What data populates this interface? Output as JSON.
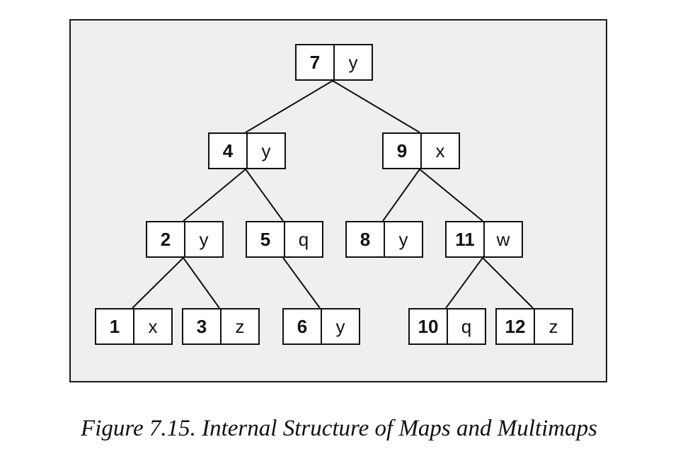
{
  "figure": {
    "caption": "Figure 7.15. Internal Structure of Maps and Multimaps"
  },
  "tree": {
    "nodes": [
      {
        "id": "n7",
        "key": "7",
        "value": "y"
      },
      {
        "id": "n4",
        "key": "4",
        "value": "y"
      },
      {
        "id": "n9",
        "key": "9",
        "value": "x"
      },
      {
        "id": "n2",
        "key": "2",
        "value": "y"
      },
      {
        "id": "n5",
        "key": "5",
        "value": "q"
      },
      {
        "id": "n8",
        "key": "8",
        "value": "y"
      },
      {
        "id": "n11",
        "key": "11",
        "value": "w"
      },
      {
        "id": "n1",
        "key": "1",
        "value": "x"
      },
      {
        "id": "n3",
        "key": "3",
        "value": "z"
      },
      {
        "id": "n6",
        "key": "6",
        "value": "y"
      },
      {
        "id": "n10",
        "key": "10",
        "value": "q"
      },
      {
        "id": "n12",
        "key": "12",
        "value": "z"
      }
    ],
    "edges": [
      [
        "n7",
        "n4"
      ],
      [
        "n7",
        "n9"
      ],
      [
        "n4",
        "n2"
      ],
      [
        "n4",
        "n5"
      ],
      [
        "n9",
        "n8"
      ],
      [
        "n9",
        "n11"
      ],
      [
        "n2",
        "n1"
      ],
      [
        "n2",
        "n3"
      ],
      [
        "n5",
        "n6"
      ],
      [
        "n11",
        "n10"
      ],
      [
        "n11",
        "n12"
      ]
    ]
  }
}
